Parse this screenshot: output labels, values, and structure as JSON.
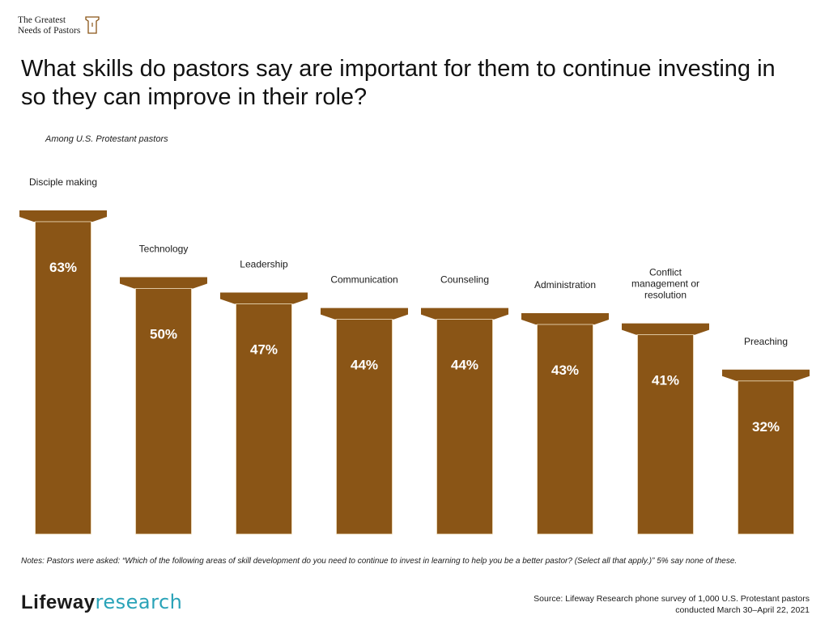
{
  "header": {
    "logo_line1": "The Greatest",
    "logo_line2": "Needs of Pastors",
    "title": "What skills do pastors say are important for them to continue investing in so they can improve in their role?",
    "subtitle": "Among U.S. Protestant pastors"
  },
  "chart_data": {
    "type": "bar",
    "title": "What skills do pastors say are important for them to continue investing in so they can improve in their role?",
    "subtitle": "Among U.S. Protestant pastors",
    "categories": [
      "Disciple making",
      "Technology",
      "Leadership",
      "Communication",
      "Counseling",
      "Administration",
      "Conflict management or resolution",
      "Preaching"
    ],
    "category_lines": [
      [
        "Disciple making"
      ],
      [
        "Technology"
      ],
      [
        "Leadership"
      ],
      [
        "Communication"
      ],
      [
        "Counseling"
      ],
      [
        "Administration"
      ],
      [
        "Conflict",
        "management or",
        "resolution"
      ],
      [
        "Preaching"
      ]
    ],
    "values": [
      63,
      50,
      47,
      44,
      44,
      43,
      41,
      32
    ],
    "value_labels": [
      "63%",
      "50%",
      "47%",
      "44%",
      "44%",
      "43%",
      "41%",
      "32%"
    ],
    "ylim": [
      0,
      63
    ],
    "grid": false,
    "legend": "none",
    "bar_color": "#8a5516",
    "label_color": "#ffffff"
  },
  "footer": {
    "notes": "Notes: Pastors were asked: “Which of the following areas of skill development do you need to continue to invest in learning to help you be a better pastor? (Select all that apply.)” 5% say none of these.",
    "brand_part1": "Lifeway",
    "brand_part2": "research",
    "source_line1": "Source: Lifeway Research phone survey of 1,000 U.S. Protestant pastors",
    "source_line2": "conducted March 30–April 22, 2021"
  }
}
